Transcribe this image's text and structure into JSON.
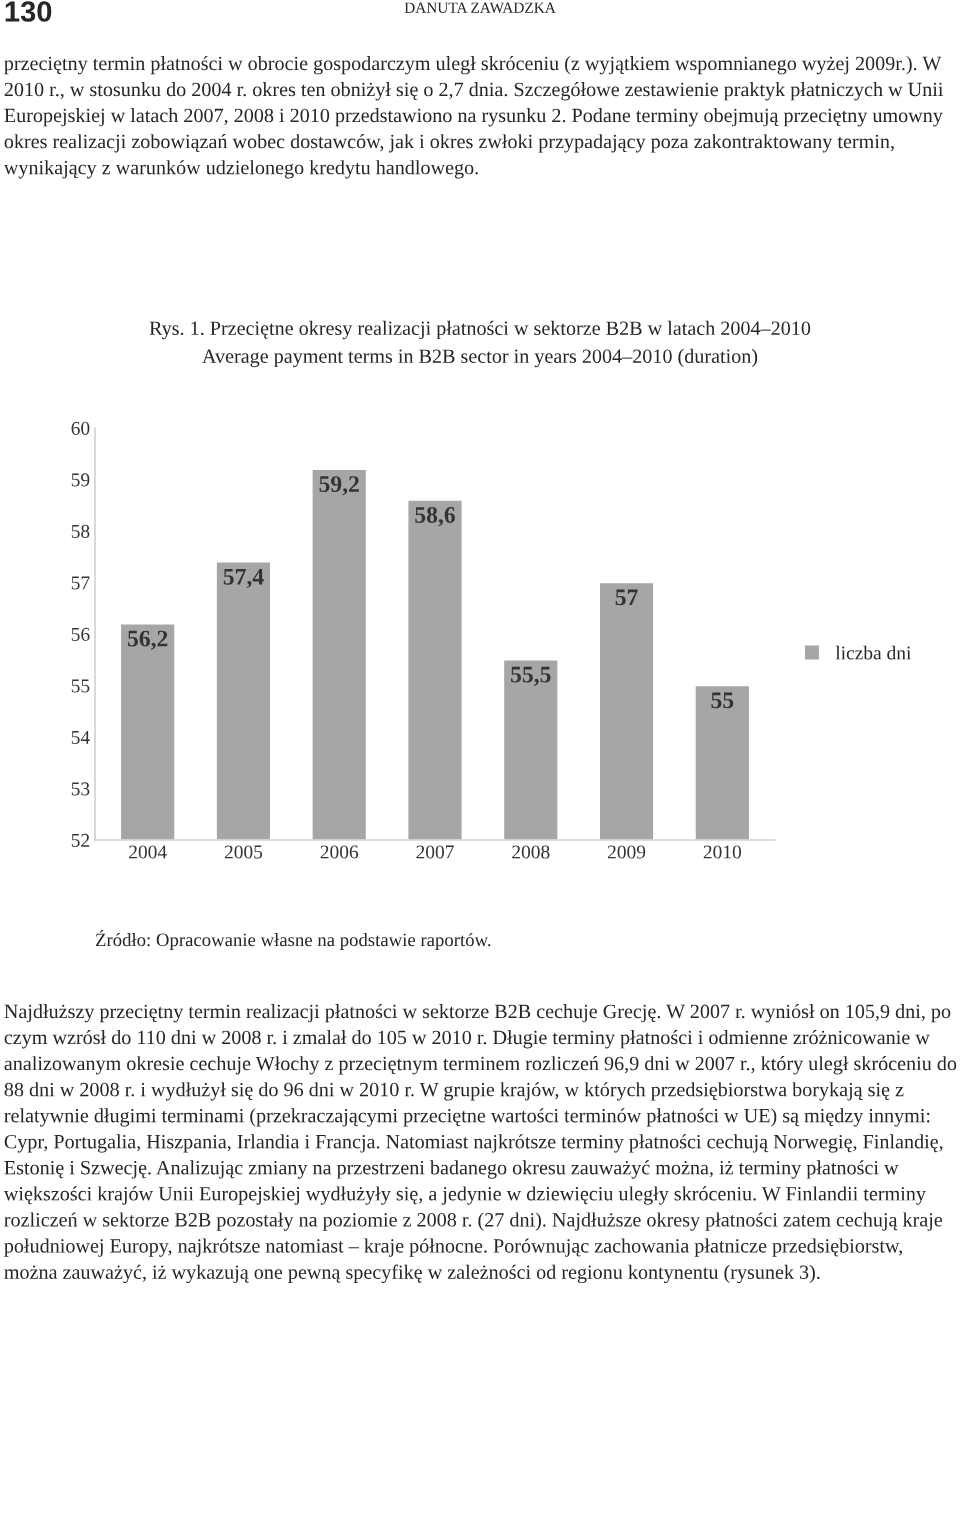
{
  "chart_data": {
    "type": "bar",
    "title": "Rys. 1. Przeciętne okresy realizacji płatności w sektorze B2B w latach 2004–2010",
    "subtitle": "Average payment terms in B2B sector in years 2004–2010 (duration)",
    "categories": [
      "2004",
      "2005",
      "2006",
      "2007",
      "2008",
      "2009",
      "2010"
    ],
    "series": [
      {
        "name": "liczba dni",
        "color": "#a6a6a6",
        "values": [
          56.2,
          57.4,
          59.2,
          58.6,
          55.5,
          57,
          55
        ]
      }
    ],
    "value_labels": [
      "56,2",
      "57,4",
      "59,2",
      "58,6",
      "55,5",
      "57",
      "55"
    ],
    "ylim": [
      52,
      60
    ],
    "yticks": [
      52,
      53,
      54,
      55,
      56,
      57,
      58,
      59,
      60
    ],
    "grid": false,
    "legend": "right",
    "annotations": [
      "130",
      "DANUTA ZAWADZKA",
      "przeciętny termin płatności w obrocie gospodarczym uległ skróceniu (z wyjątkiem wspomnianego wyżej 2009r.). W 2010 r., w stosunku do 2004 r. okres ten obniżył się o 2,7 dnia. Szczegółowe zestawienie praktyk płatniczych w Unii Europejskiej w latach 2007, 2008 i 2010 przedstawiono na rysunku 2. Podane terminy obejmują przeciętny umowny okres realizacji zobowiązań wobec dostawców, jak i okres zwłoki przypadający poza zakontraktowany termin, wynikający z warunków udzielonego kredytu handlowego.",
      "Źródło: Opracowanie własne na podstawie raportów.",
      "Najdłuższy przeciętny termin realizacji płatności w sektorze B2B cechuje Grecję. W 2007 r. wyniósł on 105,9 dni, po czym wzrósł do 110 dni w 2008 r. i zmalał do 105 w 2010 r. Długie terminy płatności i odmienne zróżnicowanie w analizowanym okresie cechuje Włochy z przeciętnym terminem rozliczeń 96,9 dni w 2007 r., który uległ skróceniu do 88 dni w 2008 r. i wydłużył się do 96 dni w 2010 r. W grupie krajów, w których przedsiębiorstwa borykają się z relatywnie długimi terminami (przekraczającymi przeciętne wartości terminów płatności w UE) są między innymi: Cypr, Portugalia, Hiszpania, Irlandia i Francja. Natomiast najkrótsze terminy płatności cechują Norwegię, Finlandię, Estonię i Szwecję. Analizując zmiany na przestrzeni badanego okresu zauważyć można, iż terminy płatności w większości krajów Unii Europejskiej wydłużyły się, a jedynie w dziewięciu uległy skróceniu. W Finlandii terminy rozliczeń w sektorze B2B pozostały na poziomie z 2008 r. (27 dni). Najdłuższe okresy płatności zatem cechują kraje południowej Europy, najkrótsze natomiast – kraje północne. Porównując zachowania płatnicze przedsiębiorstw, można zauważyć, iż wykazują one pewną specyfikę w zależności od regionu kontynentu (rysunek 3)."
    ]
  }
}
